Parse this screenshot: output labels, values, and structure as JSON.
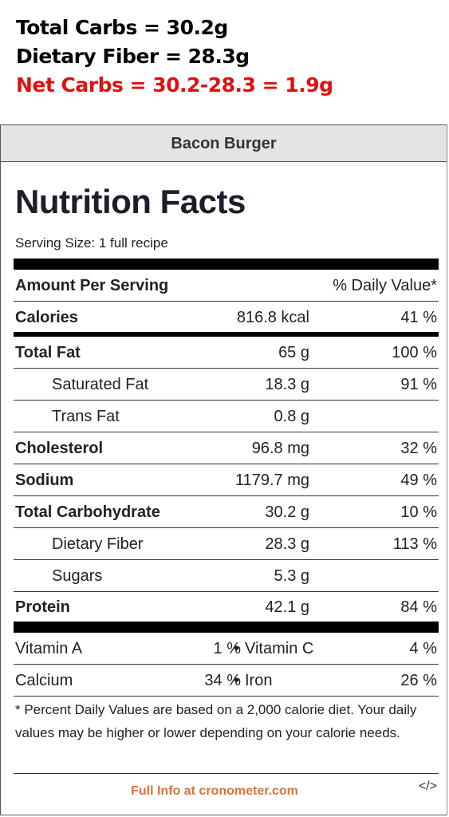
{
  "header": {
    "line1": "Total Carbs = 30.2g",
    "line2": "Dietary Fiber = 28.3g",
    "line3": "Net Carbs = 30.2-28.3 = 1.9g"
  },
  "card": {
    "recipe_name": "Bacon Burger",
    "title": "Nutrition Facts",
    "serving_size": "Serving Size: 1 full recipe",
    "amount_per_serving": "Amount Per Serving",
    "daily_value_header": "% Daily Value*",
    "rows": [
      {
        "label": "Calories",
        "amount": "816.8 kcal",
        "pct": "41 %"
      },
      {
        "label": "Total Fat",
        "amount": "65 g",
        "pct": "100 %"
      },
      {
        "label": "Saturated Fat",
        "amount": "18.3 g",
        "pct": "91 %"
      },
      {
        "label": "Trans Fat",
        "amount": "0.8 g",
        "pct": ""
      },
      {
        "label": "Cholesterol",
        "amount": "96.8 mg",
        "pct": "32 %"
      },
      {
        "label": "Sodium",
        "amount": "1179.7 mg",
        "pct": "49 %"
      },
      {
        "label": "Total Carbohydrate",
        "amount": "30.2 g",
        "pct": "10 %"
      },
      {
        "label": "Dietary Fiber",
        "amount": "28.3 g",
        "pct": "113 %"
      },
      {
        "label": "Sugars",
        "amount": "5.3 g",
        "pct": ""
      },
      {
        "label": "Protein",
        "amount": "42.1 g",
        "pct": "84 %"
      }
    ],
    "vitamins": [
      {
        "label1": "Vitamin A",
        "pct1": "1 %",
        "label2": "Vitamin C",
        "pct2": "4 %"
      },
      {
        "label1": "Calcium",
        "pct1": "34 %",
        "label2": "Iron",
        "pct2": "26 %"
      }
    ],
    "bullet": "•",
    "footnote": "* Percent Daily Values are based on a 2,000 calorie diet. Your daily values may be higher or lower depending on your calorie needs.",
    "full_info_link": "Full Info at cronometer.com",
    "embed_code": "</>"
  },
  "colors": {
    "net_carbs_red": "#e01010",
    "link_orange": "#e0703a",
    "title_bar_gray": "#e4e4e4"
  }
}
